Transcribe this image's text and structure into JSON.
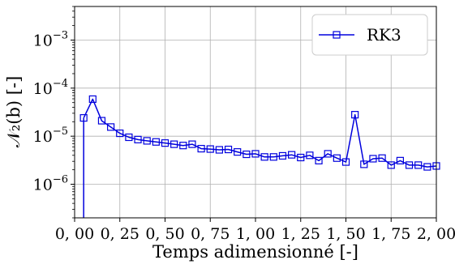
{
  "chart_data": {
    "type": "line",
    "xlabel": "Temps adimensionné [-]",
    "ylabel": "𝒩₂(b) [-]",
    "xlim": [
      0,
      2
    ],
    "ylim": [
      2e-07,
      0.005
    ],
    "yscale": "log",
    "grid": true,
    "legend_position": "top-right",
    "x_tick_labels": [
      "0, 00",
      "0, 25",
      "0, 50",
      "0, 75",
      "1, 00",
      "1, 25",
      "1, 50",
      "1, 75",
      "2, 00"
    ],
    "x_ticks": [
      0,
      0.25,
      0.5,
      0.75,
      1.0,
      1.25,
      1.5,
      1.75,
      2.0
    ],
    "y_ticks": [
      1e-06,
      1e-05,
      0.0001,
      0.001
    ],
    "y_tick_labels": [
      {
        "base": "10",
        "exp": "−6"
      },
      {
        "base": "10",
        "exp": "−5"
      },
      {
        "base": "10",
        "exp": "−4"
      },
      {
        "base": "10",
        "exp": "−3"
      }
    ],
    "series": [
      {
        "name": "RK3",
        "color": "#0000dd",
        "marker": "open-square",
        "leading_drop": {
          "x": 0.05,
          "from_y": 2e-07
        },
        "x": [
          0.05,
          0.1,
          0.15,
          0.2,
          0.25,
          0.3,
          0.35,
          0.4,
          0.45,
          0.5,
          0.55,
          0.6,
          0.65,
          0.7,
          0.75,
          0.8,
          0.85,
          0.9,
          0.95,
          1.0,
          1.05,
          1.1,
          1.15,
          1.2,
          1.25,
          1.3,
          1.35,
          1.4,
          1.45,
          1.5,
          1.55,
          1.6,
          1.65,
          1.7,
          1.75,
          1.8,
          1.85,
          1.9,
          1.95,
          2.0
        ],
        "y": [
          2.4e-05,
          5.9e-05,
          2.1e-05,
          1.55e-05,
          1.15e-05,
          9.5e-06,
          8.5e-06,
          8e-06,
          7.6e-06,
          7.2e-06,
          6.8e-06,
          6.4e-06,
          6.8e-06,
          5.5e-06,
          5.4e-06,
          5.2e-06,
          5.3e-06,
          4.7e-06,
          4.2e-06,
          4.3e-06,
          3.7e-06,
          3.7e-06,
          3.9e-06,
          4.1e-06,
          3.6e-06,
          4e-06,
          3.1e-06,
          4.3e-06,
          3.5e-06,
          2.9e-06,
          2.8e-05,
          2.6e-06,
          3.4e-06,
          3.5e-06,
          2.5e-06,
          3.1e-06,
          2.5e-06,
          2.5e-06,
          2.3e-06,
          2.4e-06
        ]
      }
    ]
  }
}
